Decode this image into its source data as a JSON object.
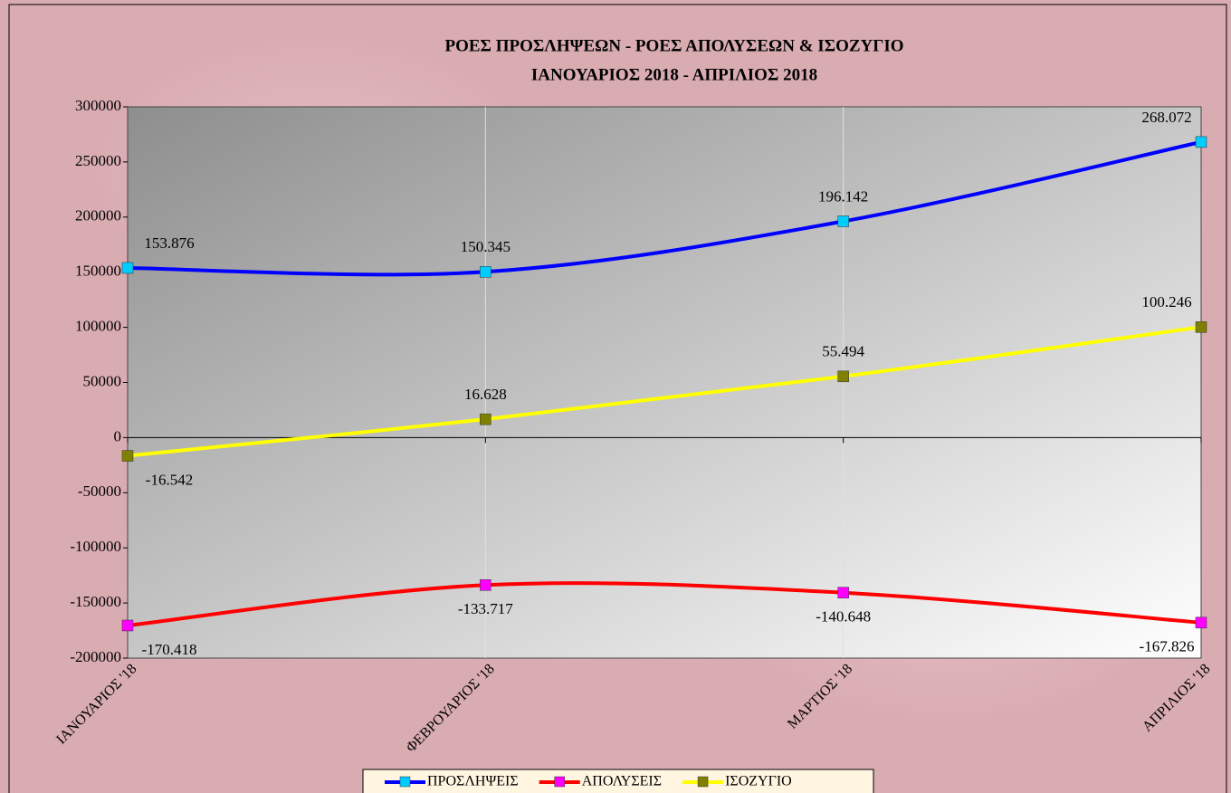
{
  "chart_data": {
    "type": "line",
    "title": "ΡΟΕΣ ΠΡΟΣΛΗΨΕΩΝ -  ΡΟΕΣ ΑΠΟΛΥΣΕΩΝ  & ΙΣΟΖΥΓΙΟ",
    "subtitle": "ΙΑΝΟΥΑΡΙΟΣ 2018 -  ΑΠΡΙΛΙΟΣ  2018",
    "categories": [
      "ΙΑΝΟΥΑΡΙΟΣ '18",
      "ΦΕΒΡΟΥΑΡΙΟΣ '18",
      "ΜΑΡΤΙΟΣ '18",
      "ΑΠΡΙΛΙΟΣ '18"
    ],
    "series": [
      {
        "name": "ΠΡΟΣΛΗΨΕΙΣ",
        "color": "#0000ff",
        "marker_color": "#00ccff",
        "values": [
          153876,
          150345,
          196142,
          268072
        ],
        "value_labels": [
          "153.876",
          "150.345",
          "196.142",
          "268.072"
        ]
      },
      {
        "name": "ΑΠΟΛΥΣΕΙΣ",
        "color": "#ff0000",
        "marker_color": "#ff00ff",
        "values": [
          -170418,
          -133717,
          -140648,
          -167826
        ],
        "value_labels": [
          "-170.418",
          "-133.717",
          "-140.648",
          "-167.826"
        ]
      },
      {
        "name": "ΙΣΟΖΥΓΙΟ",
        "color": "#ffff00",
        "marker_color": "#808000",
        "values": [
          -16542,
          16628,
          55494,
          100246
        ],
        "value_labels": [
          "-16.542",
          "16.628",
          "55.494",
          "100.246"
        ]
      }
    ],
    "ylim": [
      -200000,
      300000
    ],
    "yticks": [
      -200000,
      -150000,
      -100000,
      -50000,
      0,
      50000,
      100000,
      150000,
      200000,
      250000,
      300000
    ],
    "smooth": true,
    "grid": "x",
    "legend": "bottom"
  }
}
